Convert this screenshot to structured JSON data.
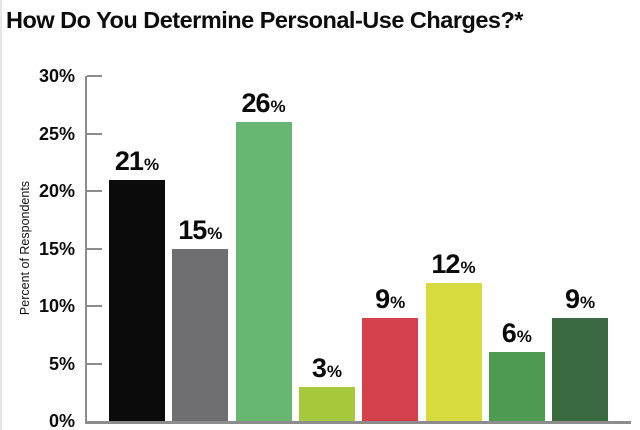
{
  "title": "How Do You Determine Personal-Use Charges?*",
  "colors": {
    "axis": "#8c8c8c",
    "text": "#0d0d0d",
    "background": "#ffffff",
    "edge_strip": "#e6e6e6"
  },
  "chart_data": {
    "type": "bar",
    "title": "How Do You Determine Personal-Use Charges?*",
    "values": [
      21,
      15,
      26,
      3,
      9,
      12,
      6,
      9
    ],
    "value_labels": [
      "21%",
      "15%",
      "26%",
      "3%",
      "9%",
      "12%",
      "6%",
      "9%"
    ],
    "value_suffix": "%",
    "bar_colors": [
      "#0b0b0b",
      "#6f6f72",
      "#67b671",
      "#a6c93c",
      "#d4404c",
      "#d8db3e",
      "#4d9a50",
      "#3b6a40"
    ],
    "xlabel": "",
    "ylabel": "Percent of Respondents",
    "ylim": [
      0,
      30
    ],
    "ytick_step": 5,
    "ytick_labels_top_down": [
      "30%",
      "25%",
      "20%",
      "15%",
      "10%",
      "5%",
      "0%"
    ],
    "grid": false,
    "legend": "none",
    "x_category_labels_visible": false
  }
}
